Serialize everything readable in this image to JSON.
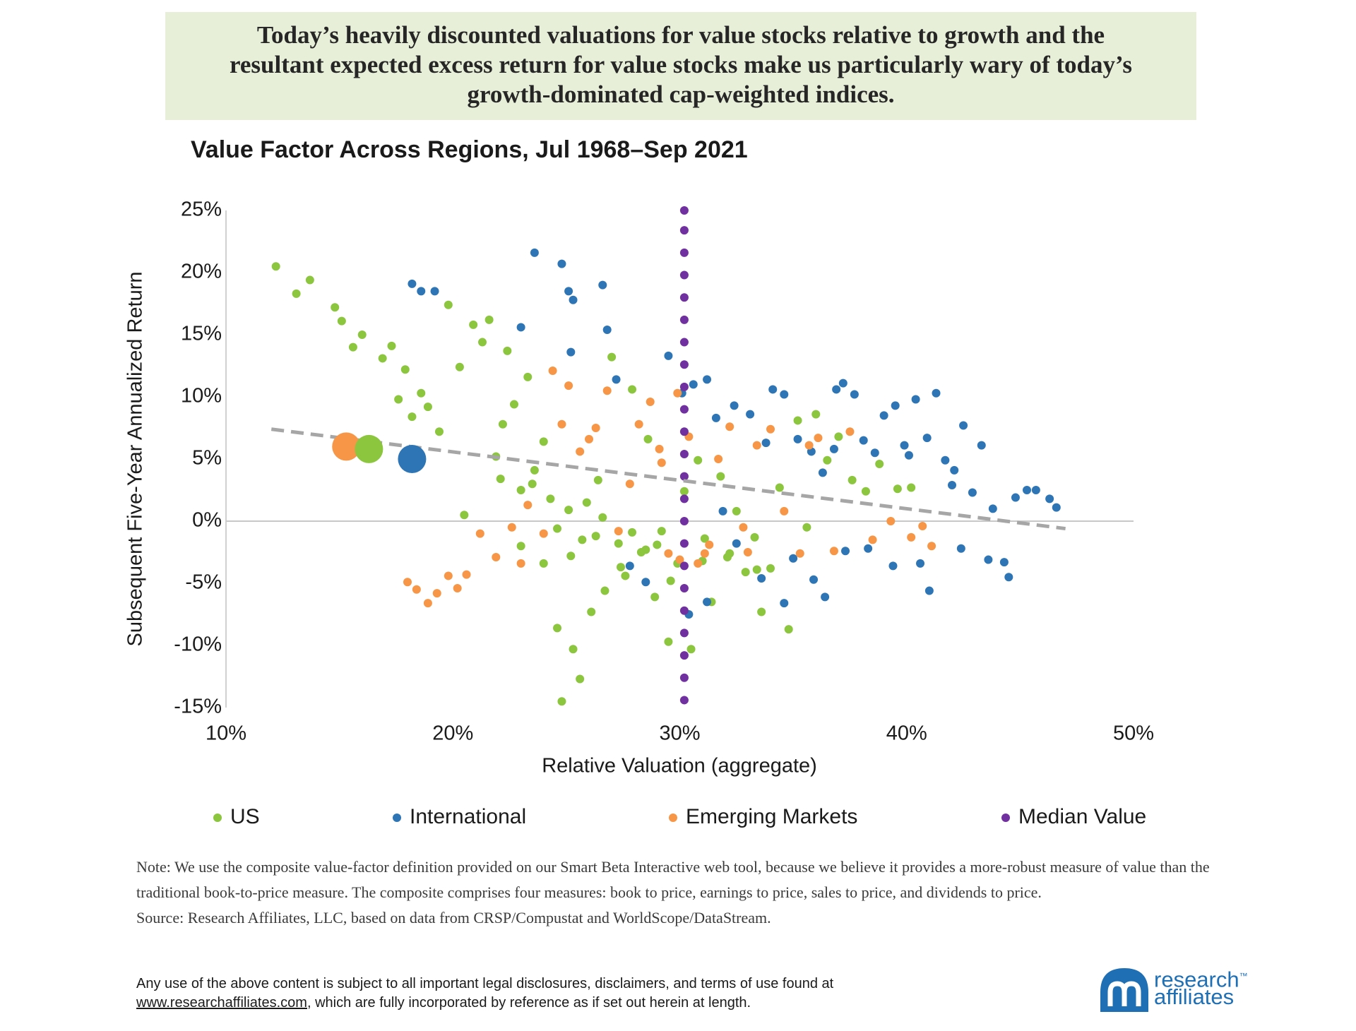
{
  "header": {
    "lines": [
      "Today’s heavily discounted valuations for value stocks relative to growth and the",
      "resultant expected excess return for value stocks make us particularly wary of today’s",
      "growth-dominated cap-weighted indices."
    ]
  },
  "chart_data": {
    "type": "scatter",
    "title": "Value Factor Across Regions, Jul 1968–Sep 2021",
    "x_label": "Relative Valuation (aggregate)",
    "y_label": "Subsequent Five-Year Annualized Return",
    "xlim": [
      10,
      50
    ],
    "ylim": [
      -15,
      25
    ],
    "xticks": [
      {
        "value": 10,
        "label": "10%"
      },
      {
        "value": 20,
        "label": "20%"
      },
      {
        "value": 30,
        "label": "30%"
      },
      {
        "value": 40,
        "label": "40%"
      },
      {
        "value": 50,
        "label": "50%"
      }
    ],
    "yticks": [
      {
        "value": 25,
        "label": "25%"
      },
      {
        "value": 20,
        "label": "20%"
      },
      {
        "value": 15,
        "label": "15%"
      },
      {
        "value": 10,
        "label": "10%"
      },
      {
        "value": 5,
        "label": "5%"
      },
      {
        "value": 0,
        "label": "0%"
      },
      {
        "value": -5,
        "label": "-5%"
      },
      {
        "value": -10,
        "label": "-10%"
      },
      {
        "value": -15,
        "label": "-15%"
      }
    ],
    "grid": false,
    "legend": "bottom",
    "series": [
      {
        "name": "US",
        "color": "#8cc63f",
        "x": [
          12.2,
          13.1,
          13.7,
          14.8,
          15.1,
          15.6,
          16.0,
          16.9,
          17.3,
          17.6,
          17.9,
          18.2,
          18.6,
          18.9,
          19.4,
          19.8,
          20.3,
          20.5,
          20.9,
          21.3,
          21.6,
          21.9,
          22.1,
          22.4,
          22.7,
          23.0,
          23.3,
          23.6,
          24.0,
          24.3,
          24.6,
          24.8,
          25.1,
          25.3,
          25.6,
          25.9,
          26.1,
          26.4,
          26.7,
          27.0,
          27.3,
          27.6,
          27.9,
          28.3,
          28.6,
          28.9,
          29.2,
          29.5,
          29.9,
          30.2,
          30.5,
          30.8,
          31.1,
          31.4,
          31.8,
          32.1,
          32.5,
          32.9,
          33.3,
          33.6,
          34.0,
          34.4,
          34.8,
          35.2,
          35.6,
          36.0,
          36.5,
          37.0,
          37.6,
          38.2,
          38.8,
          39.6,
          40.2,
          23.0,
          24.0,
          25.2,
          26.3,
          27.4,
          28.5,
          29.6,
          31.0,
          32.2,
          33.4,
          22.2,
          23.5,
          24.6,
          25.7,
          26.6,
          27.9,
          29.0
        ],
        "values": [
          20.5,
          18.3,
          19.4,
          17.2,
          16.1,
          14.0,
          15.0,
          13.1,
          14.1,
          9.8,
          12.2,
          8.4,
          10.3,
          9.2,
          7.2,
          17.4,
          12.4,
          0.5,
          15.8,
          14.4,
          16.2,
          5.2,
          3.4,
          13.7,
          9.4,
          2.5,
          11.6,
          4.1,
          6.4,
          1.8,
          -8.6,
          -14.5,
          0.9,
          -10.3,
          -12.7,
          1.5,
          -7.3,
          3.3,
          -5.6,
          13.2,
          -1.8,
          -4.4,
          10.6,
          -2.5,
          6.6,
          -6.1,
          -0.8,
          -9.7,
          -3.4,
          2.4,
          -10.3,
          4.9,
          -1.4,
          -6.5,
          3.6,
          -2.9,
          0.8,
          -4.1,
          -1.3,
          -7.3,
          -3.8,
          2.7,
          -8.7,
          8.1,
          -0.5,
          8.6,
          4.9,
          6.8,
          3.3,
          2.4,
          4.6,
          2.6,
          2.7,
          -2.0,
          -3.4,
          -2.8,
          -1.2,
          -3.7,
          -2.3,
          -4.8,
          -3.2,
          -2.6,
          -3.9,
          7.8,
          3.0,
          -0.6,
          -1.5,
          0.3,
          -0.9,
          -1.9
        ]
      },
      {
        "name": "International",
        "color": "#2e75b6",
        "x": [
          18.2,
          18.6,
          19.2,
          23.6,
          24.8,
          25.1,
          25.3,
          26.6,
          26.8,
          27.2,
          23.0,
          25.2,
          27.8,
          29.5,
          30.1,
          30.6,
          31.2,
          31.6,
          32.4,
          33.1,
          33.8,
          34.1,
          34.6,
          35.2,
          35.8,
          36.3,
          36.9,
          37.2,
          37.7,
          38.1,
          38.6,
          39.0,
          39.5,
          39.9,
          40.4,
          40.9,
          41.3,
          41.7,
          42.1,
          42.5,
          42.9,
          43.3,
          43.8,
          44.3,
          44.8,
          45.3,
          45.7,
          46.3,
          46.6,
          44.5,
          35.0,
          35.9,
          36.4,
          37.3,
          38.3,
          39.4,
          40.6,
          41.0,
          42.4,
          43.6,
          31.2,
          32.5,
          33.6,
          34.6,
          30.4,
          31.9,
          28.5,
          36.8,
          40.1,
          42.0
        ],
        "values": [
          19.1,
          18.5,
          18.5,
          21.6,
          20.7,
          18.5,
          17.8,
          19.0,
          15.4,
          11.4,
          15.6,
          13.6,
          -3.6,
          13.3,
          10.3,
          11.0,
          11.4,
          8.3,
          9.3,
          8.6,
          6.3,
          10.6,
          10.2,
          6.6,
          5.6,
          3.9,
          10.6,
          11.1,
          10.2,
          6.5,
          5.5,
          8.5,
          9.3,
          6.1,
          9.8,
          6.7,
          10.3,
          4.9,
          4.1,
          7.7,
          2.3,
          6.1,
          1.0,
          -3.3,
          1.9,
          2.5,
          2.5,
          1.8,
          1.1,
          -4.5,
          -3.0,
          -4.7,
          -6.1,
          -2.4,
          -2.2,
          -3.6,
          -3.4,
          -5.6,
          -2.2,
          -3.1,
          -6.5,
          -1.8,
          -4.6,
          -6.6,
          -7.5,
          0.8,
          -4.9,
          5.8,
          5.3,
          2.9
        ]
      },
      {
        "name": "Emerging Markets",
        "color": "#f79646",
        "x": [
          18.0,
          18.4,
          18.9,
          19.3,
          19.8,
          20.2,
          20.6,
          21.2,
          21.9,
          22.6,
          23.0,
          23.3,
          24.0,
          24.4,
          24.8,
          25.1,
          25.6,
          26.3,
          26.8,
          27.3,
          27.8,
          28.2,
          28.7,
          29.1,
          29.5,
          29.9,
          30.4,
          30.8,
          31.3,
          31.7,
          32.2,
          32.8,
          33.4,
          34.0,
          34.6,
          35.3,
          36.1,
          36.8,
          37.5,
          38.5,
          39.3,
          40.2,
          40.7,
          41.1,
          30.0,
          29.2,
          31.1,
          26.0,
          33.0,
          35.7
        ],
        "values": [
          -4.9,
          -5.5,
          -6.6,
          -5.8,
          -4.4,
          -5.4,
          -4.3,
          -1.0,
          -2.9,
          -0.5,
          -3.4,
          1.3,
          -1.0,
          12.1,
          7.8,
          10.9,
          5.6,
          7.5,
          10.5,
          -0.8,
          3.0,
          7.8,
          9.6,
          5.8,
          -2.6,
          10.3,
          6.8,
          -3.4,
          -1.9,
          5.0,
          7.6,
          -0.5,
          6.1,
          7.4,
          0.8,
          -2.6,
          6.7,
          -2.4,
          7.2,
          -1.5,
          0.0,
          -1.3,
          -0.4,
          -2.0,
          -3.1,
          4.7,
          -2.6,
          6.6,
          -2.5,
          6.1
        ]
      },
      {
        "name": "Median Value",
        "color": "#7030a0",
        "x": [
          30.2,
          30.2,
          30.2,
          30.2,
          30.2,
          30.2,
          30.2,
          30.2,
          30.2,
          30.2,
          30.2,
          30.2,
          30.2,
          30.2,
          30.2,
          30.2,
          30.2,
          30.2,
          30.2,
          30.2,
          30.2,
          30.2,
          30.2
        ],
        "values": [
          25.0,
          23.4,
          21.6,
          19.8,
          18.0,
          16.2,
          14.4,
          12.6,
          10.8,
          9.0,
          7.2,
          5.4,
          3.6,
          1.8,
          0,
          -1.8,
          -3.6,
          -5.4,
          -7.2,
          -9.0,
          -10.8,
          -12.6,
          -14.4
        ]
      }
    ],
    "current_points": [
      {
        "x": 15.3,
        "y": 6.0,
        "color": "#f79646"
      },
      {
        "x": 16.3,
        "y": 5.8,
        "color": "#8cc63f"
      },
      {
        "x": 18.2,
        "y": 5.0,
        "color": "#2e75b6"
      }
    ],
    "trendline": {
      "x": [
        12,
        47
      ],
      "y": [
        7.4,
        -0.6
      ],
      "color": "#a6a6a6"
    }
  },
  "notes": {
    "note": "Note: We use the composite value-factor definition provided on our Smart Beta Interactive web tool, because we believe it provides a more-robust measure of value than the traditional book-to-price measure. The composite comprises four measures: book to price, earnings to price, sales to price, and dividends to price.",
    "source": "Source: Research Affiliates, LLC, based on data from CRSP/Compustat and WorldScope/DataStream."
  },
  "disclaimer": {
    "text": "Any use of the above content is subject to all important legal disclosures, disclaimers, and terms of use found at",
    "link": "www.researchaffiliates.com",
    "rest": ", which are fully incorporated by reference as if set out herein at length."
  },
  "logo": {
    "line1": "research",
    "tm": "™",
    "line2": "affiliates"
  }
}
